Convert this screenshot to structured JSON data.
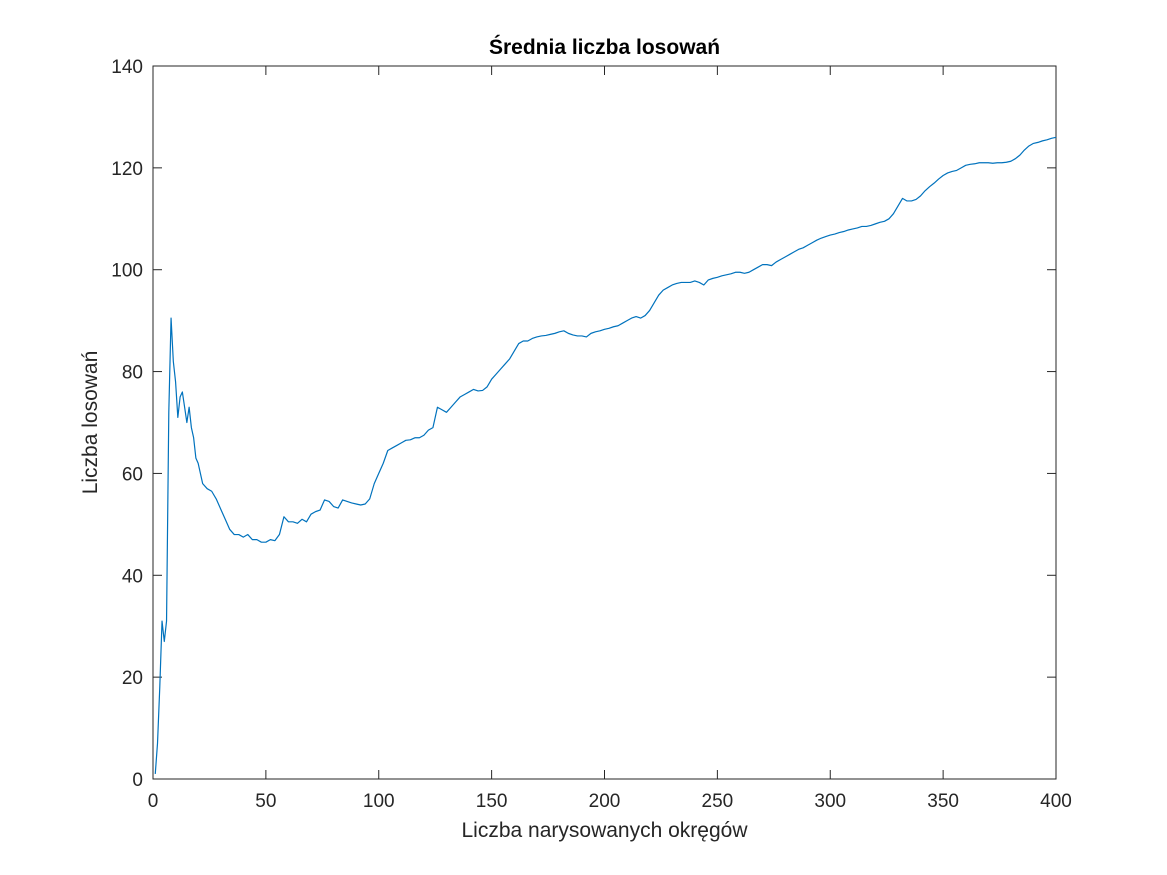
{
  "chart_data": {
    "type": "line",
    "title": "Średnia liczba losowań",
    "xlabel": "Liczba narysowanych okręgów",
    "ylabel": "Liczba losowań",
    "xlim": [
      0,
      400
    ],
    "ylim": [
      0,
      140
    ],
    "xticks": [
      0,
      50,
      100,
      150,
      200,
      250,
      300,
      350,
      400
    ],
    "yticks": [
      0,
      20,
      40,
      60,
      80,
      100,
      120,
      140
    ],
    "xtick_labels": [
      "0",
      "50",
      "100",
      "150",
      "200",
      "250",
      "300",
      "350",
      "400"
    ],
    "ytick_labels": [
      "0",
      "20",
      "40",
      "60",
      "80",
      "100",
      "120",
      "140"
    ],
    "grid": false,
    "legend": "none",
    "line_color": "#0072BD",
    "series": [
      {
        "x": [
          1,
          2,
          3,
          4,
          5,
          6,
          7,
          8,
          9,
          10,
          11,
          12,
          13,
          14,
          15,
          16,
          17,
          18,
          19,
          20,
          22,
          24,
          26,
          28,
          30,
          32,
          34,
          36,
          38,
          40,
          42,
          44,
          46,
          48,
          50,
          52,
          54,
          56,
          58,
          60,
          62,
          64,
          66,
          68,
          70,
          72,
          74,
          76,
          78,
          80,
          82,
          84,
          86,
          88,
          90,
          92,
          94,
          96,
          98,
          100,
          102,
          104,
          106,
          108,
          110,
          112,
          114,
          116,
          118,
          120,
          122,
          124,
          126,
          128,
          130,
          132,
          134,
          136,
          138,
          140,
          142,
          144,
          146,
          148,
          150,
          152,
          154,
          156,
          158,
          160,
          162,
          164,
          166,
          168,
          170,
          172,
          174,
          176,
          178,
          180,
          182,
          184,
          186,
          188,
          190,
          192,
          194,
          196,
          198,
          200,
          202,
          204,
          206,
          208,
          210,
          212,
          214,
          216,
          218,
          220,
          222,
          224,
          226,
          228,
          230,
          232,
          234,
          236,
          238,
          240,
          242,
          244,
          246,
          248,
          250,
          252,
          254,
          256,
          258,
          260,
          262,
          264,
          266,
          268,
          270,
          272,
          274,
          276,
          278,
          280,
          282,
          284,
          286,
          288,
          290,
          292,
          294,
          296,
          298,
          300,
          302,
          304,
          306,
          308,
          310,
          312,
          314,
          316,
          318,
          320,
          322,
          324,
          326,
          328,
          330,
          332,
          334,
          336,
          338,
          340,
          342,
          344,
          346,
          348,
          350,
          352,
          354,
          356,
          358,
          360,
          362,
          364,
          366,
          368,
          370,
          372,
          374,
          376,
          378,
          380,
          382,
          384,
          386,
          388,
          390,
          392,
          394,
          396,
          398,
          400
        ],
        "y": [
          1,
          7,
          18,
          31,
          27,
          31,
          72,
          90.5,
          82,
          78,
          71,
          75,
          76,
          73,
          70,
          73,
          69,
          67,
          63,
          62,
          58,
          57,
          56.5,
          55,
          53,
          51,
          49,
          48,
          48,
          47.5,
          48,
          47,
          47,
          46.5,
          46.5,
          47,
          46.8,
          48,
          51.5,
          50.5,
          50.5,
          50.2,
          51,
          50.5,
          52,
          52.5,
          52.8,
          54.8,
          54.5,
          53.5,
          53.2,
          54.8,
          54.5,
          54.2,
          54,
          53.8,
          54,
          55,
          58,
          60,
          62,
          64.5,
          65,
          65.5,
          66,
          66.5,
          66.6,
          67,
          67,
          67.5,
          68.5,
          69,
          73,
          72.5,
          72,
          73,
          74,
          75,
          75.5,
          76,
          76.5,
          76.2,
          76.3,
          77,
          78.5,
          79.5,
          80.5,
          81.5,
          82.5,
          84,
          85.5,
          86,
          86,
          86.5,
          86.8,
          87,
          87.1,
          87.3,
          87.5,
          87.8,
          88,
          87.5,
          87.2,
          87,
          87,
          86.8,
          87.5,
          87.8,
          88,
          88.3,
          88.5,
          88.8,
          89,
          89.5,
          90,
          90.5,
          90.8,
          90.5,
          91,
          92,
          93.5,
          95,
          96,
          96.5,
          97,
          97.3,
          97.5,
          97.5,
          97.5,
          97.8,
          97.5,
          97,
          98,
          98.3,
          98.5,
          98.8,
          99,
          99.2,
          99.5,
          99.5,
          99.3,
          99.5,
          100,
          100.5,
          101,
          101,
          100.8,
          101.5,
          102,
          102.5,
          103,
          103.5,
          104,
          104.3,
          104.8,
          105.3,
          105.8,
          106.2,
          106.5,
          106.8,
          107,
          107.3,
          107.5,
          107.8,
          108,
          108.2,
          108.5,
          108.5,
          108.7,
          109,
          109.3,
          109.5,
          110,
          111,
          112.5,
          114,
          113.5,
          113.5,
          113.8,
          114.5,
          115.5,
          116.3,
          117,
          117.8,
          118.5,
          119,
          119.3,
          119.5,
          120,
          120.5,
          120.7,
          120.8,
          121,
          121,
          121,
          120.9,
          121,
          121,
          121.1,
          121.3,
          121.8,
          122.5,
          123.5,
          124.3,
          124.8,
          125,
          125.3,
          125.5,
          125.8,
          126
        ]
      }
    ]
  }
}
